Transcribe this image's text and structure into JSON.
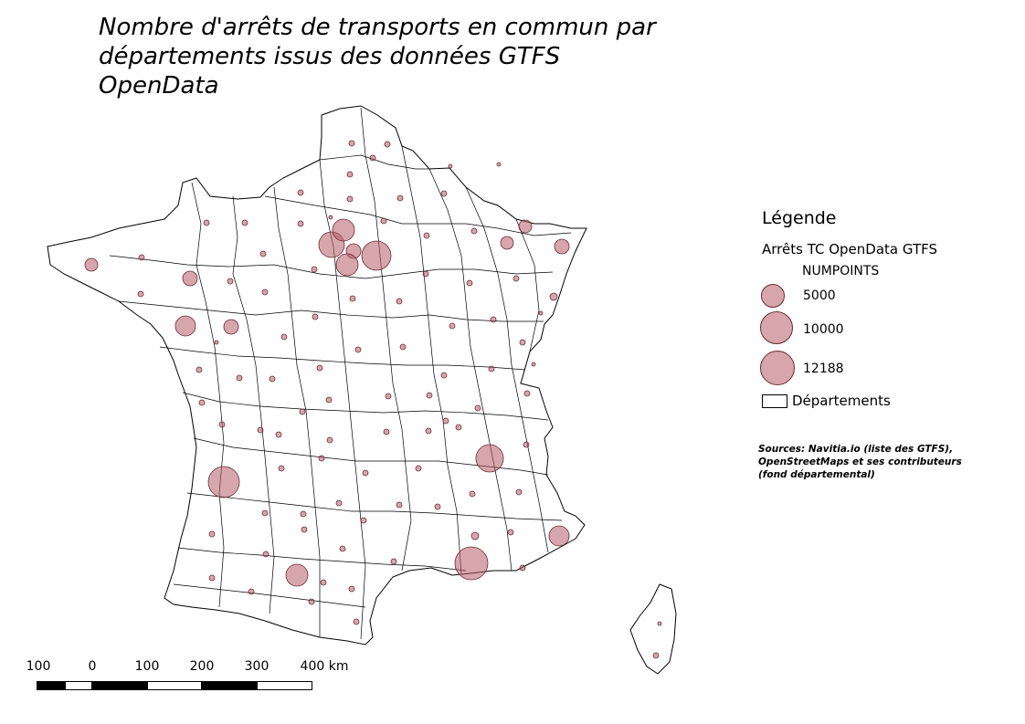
{
  "title": {
    "line1": "Nombre d'arrêts de transports en commun par",
    "line2": "départements issus des données GTFS OpenData"
  },
  "legend": {
    "heading": "Légende",
    "layer_name": "Arrêts TC OpenData GTFS",
    "field_name": "NUMPOINTS",
    "items": [
      {
        "label": "5000",
        "value": 5000
      },
      {
        "label": "10000",
        "value": 10000
      },
      {
        "label": "12188",
        "value": 12188
      }
    ],
    "departments_label": "Départements"
  },
  "sources": {
    "line1": "Sources: Navitia.io (liste des GTFS),",
    "line2": "OpenStreetMaps et ses contributeurs",
    "line3": "(fond départemental)"
  },
  "scalebar": {
    "labels": [
      "100",
      "0",
      "100",
      "200",
      "300",
      "400 km"
    ]
  },
  "colors": {
    "symbol_fill": "#b75c68",
    "symbol_stroke": "#6a2a33",
    "outline": "#000000"
  }
}
